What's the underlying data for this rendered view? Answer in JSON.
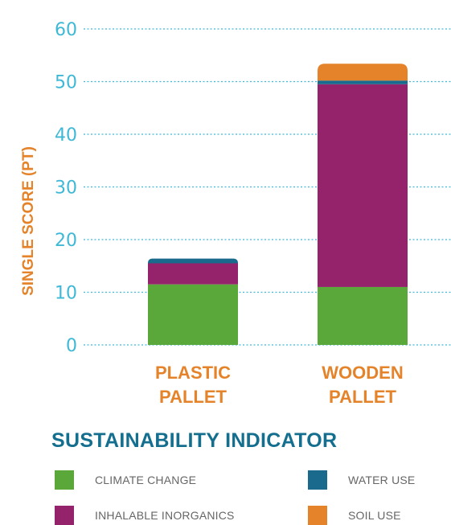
{
  "chart_data": {
    "type": "bar",
    "stacked": true,
    "title": "",
    "xlabel": "",
    "ylabel": "SINGLE SCORE (PT)",
    "ylim": [
      0,
      60
    ],
    "yticks": [
      0,
      10,
      20,
      30,
      40,
      50,
      60
    ],
    "grid": true,
    "categories": [
      [
        "PLASTIC",
        "PALLET"
      ],
      [
        "WOODEN",
        "PALLET"
      ]
    ],
    "series": [
      {
        "name": "CLIMATE CHANGE",
        "color": "#5aa83a",
        "values": [
          11.5,
          11
        ]
      },
      {
        "name": "INHALABLE INORGANICS",
        "color": "#94236b",
        "values": [
          4,
          38.5
        ]
      },
      {
        "name": "WATER USE",
        "color": "#1a6a8e",
        "values": [
          0.9,
          0.7
        ]
      },
      {
        "name": "SOIL USE",
        "color": "#e4832a",
        "values": [
          0,
          3.2
        ]
      }
    ],
    "legend": {
      "title": "SUSTAINABILITY INDICATOR",
      "placement": "bottom"
    }
  }
}
